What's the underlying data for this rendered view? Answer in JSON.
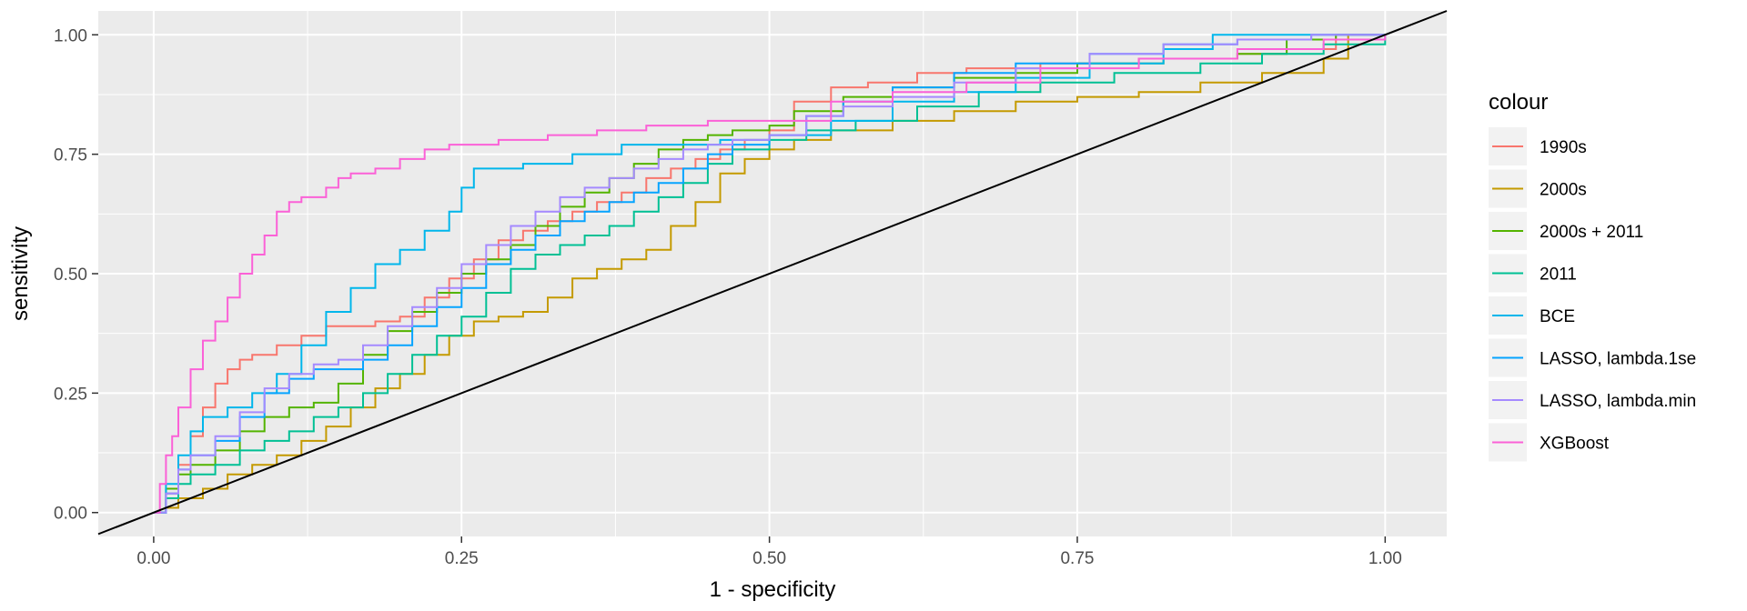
{
  "chart_data": {
    "type": "line",
    "title": "",
    "xlabel": "1 - specificity",
    "ylabel": "sensitivity",
    "xlim": [
      -0.045,
      1.05
    ],
    "ylim": [
      -0.05,
      1.05
    ],
    "x_ticks": [
      0.0,
      0.25,
      0.5,
      0.75,
      1.0
    ],
    "x_tick_labels": [
      "0.00",
      "0.25",
      "0.50",
      "0.75",
      "1.00"
    ],
    "y_ticks": [
      0.0,
      0.25,
      0.5,
      0.75,
      1.0
    ],
    "y_tick_labels": [
      "0.00",
      "0.25",
      "0.50",
      "0.75",
      "1.00"
    ],
    "grid": true,
    "legend": {
      "title": "colour",
      "position": "right"
    },
    "reference_line": {
      "type": "diagonal",
      "color": "#000000"
    },
    "series": [
      {
        "name": "1990s",
        "color": "#F8766D",
        "points": [
          [
            0,
            0
          ],
          [
            0.01,
            0.04
          ],
          [
            0.02,
            0.1
          ],
          [
            0.03,
            0.16
          ],
          [
            0.04,
            0.22
          ],
          [
            0.05,
            0.27
          ],
          [
            0.06,
            0.3
          ],
          [
            0.07,
            0.32
          ],
          [
            0.08,
            0.33
          ],
          [
            0.1,
            0.35
          ],
          [
            0.12,
            0.37
          ],
          [
            0.14,
            0.39
          ],
          [
            0.16,
            0.39
          ],
          [
            0.18,
            0.4
          ],
          [
            0.2,
            0.41
          ],
          [
            0.22,
            0.45
          ],
          [
            0.24,
            0.49
          ],
          [
            0.26,
            0.53
          ],
          [
            0.28,
            0.57
          ],
          [
            0.3,
            0.59
          ],
          [
            0.32,
            0.61
          ],
          [
            0.34,
            0.63
          ],
          [
            0.36,
            0.65
          ],
          [
            0.38,
            0.67
          ],
          [
            0.4,
            0.7
          ],
          [
            0.42,
            0.72
          ],
          [
            0.44,
            0.74
          ],
          [
            0.46,
            0.76
          ],
          [
            0.48,
            0.78
          ],
          [
            0.5,
            0.8
          ],
          [
            0.52,
            0.86
          ],
          [
            0.55,
            0.89
          ],
          [
            0.58,
            0.9
          ],
          [
            0.62,
            0.92
          ],
          [
            0.66,
            0.93
          ],
          [
            0.72,
            0.94
          ],
          [
            0.8,
            0.95
          ],
          [
            0.88,
            0.96
          ],
          [
            0.92,
            0.97
          ],
          [
            0.96,
            1.0
          ],
          [
            1.0,
            1.0
          ]
        ]
      },
      {
        "name": "2000s",
        "color": "#C49A00",
        "points": [
          [
            0,
            0
          ],
          [
            0.01,
            0.01
          ],
          [
            0.02,
            0.03
          ],
          [
            0.04,
            0.05
          ],
          [
            0.06,
            0.08
          ],
          [
            0.08,
            0.1
          ],
          [
            0.1,
            0.12
          ],
          [
            0.12,
            0.15
          ],
          [
            0.14,
            0.18
          ],
          [
            0.16,
            0.22
          ],
          [
            0.18,
            0.26
          ],
          [
            0.2,
            0.29
          ],
          [
            0.22,
            0.33
          ],
          [
            0.24,
            0.37
          ],
          [
            0.26,
            0.4
          ],
          [
            0.28,
            0.41
          ],
          [
            0.3,
            0.42
          ],
          [
            0.32,
            0.45
          ],
          [
            0.34,
            0.49
          ],
          [
            0.36,
            0.51
          ],
          [
            0.38,
            0.53
          ],
          [
            0.4,
            0.55
          ],
          [
            0.42,
            0.6
          ],
          [
            0.44,
            0.65
          ],
          [
            0.46,
            0.71
          ],
          [
            0.48,
            0.74
          ],
          [
            0.5,
            0.76
          ],
          [
            0.52,
            0.78
          ],
          [
            0.55,
            0.8
          ],
          [
            0.6,
            0.82
          ],
          [
            0.65,
            0.84
          ],
          [
            0.7,
            0.86
          ],
          [
            0.75,
            0.87
          ],
          [
            0.8,
            0.88
          ],
          [
            0.85,
            0.9
          ],
          [
            0.9,
            0.92
          ],
          [
            0.95,
            0.95
          ],
          [
            0.97,
            1.0
          ],
          [
            1.0,
            1.0
          ]
        ]
      },
      {
        "name": "2000s + 2011",
        "color": "#53B400",
        "points": [
          [
            0,
            0
          ],
          [
            0.01,
            0.05
          ],
          [
            0.02,
            0.08
          ],
          [
            0.03,
            0.1
          ],
          [
            0.05,
            0.13
          ],
          [
            0.07,
            0.17
          ],
          [
            0.09,
            0.2
          ],
          [
            0.11,
            0.22
          ],
          [
            0.13,
            0.23
          ],
          [
            0.15,
            0.27
          ],
          [
            0.17,
            0.33
          ],
          [
            0.19,
            0.38
          ],
          [
            0.21,
            0.42
          ],
          [
            0.23,
            0.46
          ],
          [
            0.25,
            0.5
          ],
          [
            0.27,
            0.53
          ],
          [
            0.29,
            0.56
          ],
          [
            0.31,
            0.6
          ],
          [
            0.33,
            0.64
          ],
          [
            0.35,
            0.67
          ],
          [
            0.37,
            0.7
          ],
          [
            0.39,
            0.73
          ],
          [
            0.41,
            0.76
          ],
          [
            0.43,
            0.78
          ],
          [
            0.45,
            0.79
          ],
          [
            0.47,
            0.8
          ],
          [
            0.5,
            0.81
          ],
          [
            0.52,
            0.84
          ],
          [
            0.56,
            0.87
          ],
          [
            0.6,
            0.89
          ],
          [
            0.65,
            0.91
          ],
          [
            0.7,
            0.92
          ],
          [
            0.75,
            0.94
          ],
          [
            0.82,
            0.95
          ],
          [
            0.88,
            0.96
          ],
          [
            0.92,
            0.99
          ],
          [
            0.96,
            1.0
          ],
          [
            1.0,
            1.0
          ]
        ]
      },
      {
        "name": "2011",
        "color": "#00C094",
        "points": [
          [
            0,
            0
          ],
          [
            0.01,
            0.03
          ],
          [
            0.02,
            0.06
          ],
          [
            0.03,
            0.08
          ],
          [
            0.05,
            0.1
          ],
          [
            0.07,
            0.13
          ],
          [
            0.09,
            0.15
          ],
          [
            0.11,
            0.17
          ],
          [
            0.13,
            0.2
          ],
          [
            0.15,
            0.22
          ],
          [
            0.17,
            0.25
          ],
          [
            0.19,
            0.29
          ],
          [
            0.21,
            0.33
          ],
          [
            0.23,
            0.37
          ],
          [
            0.25,
            0.41
          ],
          [
            0.27,
            0.46
          ],
          [
            0.29,
            0.51
          ],
          [
            0.31,
            0.54
          ],
          [
            0.33,
            0.56
          ],
          [
            0.35,
            0.58
          ],
          [
            0.37,
            0.6
          ],
          [
            0.39,
            0.63
          ],
          [
            0.41,
            0.66
          ],
          [
            0.43,
            0.69
          ],
          [
            0.45,
            0.73
          ],
          [
            0.47,
            0.76
          ],
          [
            0.5,
            0.78
          ],
          [
            0.53,
            0.8
          ],
          [
            0.57,
            0.82
          ],
          [
            0.62,
            0.85
          ],
          [
            0.67,
            0.88
          ],
          [
            0.72,
            0.9
          ],
          [
            0.78,
            0.92
          ],
          [
            0.85,
            0.94
          ],
          [
            0.9,
            0.96
          ],
          [
            0.95,
            0.98
          ],
          [
            1.0,
            1.0
          ]
        ]
      },
      {
        "name": "BCE",
        "color": "#00B6EB",
        "points": [
          [
            0,
            0
          ],
          [
            0.01,
            0.06
          ],
          [
            0.02,
            0.12
          ],
          [
            0.03,
            0.17
          ],
          [
            0.04,
            0.2
          ],
          [
            0.06,
            0.22
          ],
          [
            0.08,
            0.25
          ],
          [
            0.1,
            0.29
          ],
          [
            0.12,
            0.35
          ],
          [
            0.14,
            0.42
          ],
          [
            0.16,
            0.47
          ],
          [
            0.18,
            0.52
          ],
          [
            0.2,
            0.55
          ],
          [
            0.22,
            0.59
          ],
          [
            0.24,
            0.63
          ],
          [
            0.25,
            0.68
          ],
          [
            0.26,
            0.72
          ],
          [
            0.3,
            0.73
          ],
          [
            0.34,
            0.75
          ],
          [
            0.38,
            0.77
          ],
          [
            0.42,
            0.77
          ],
          [
            0.46,
            0.78
          ],
          [
            0.5,
            0.79
          ],
          [
            0.55,
            0.82
          ],
          [
            0.6,
            0.86
          ],
          [
            0.65,
            0.88
          ],
          [
            0.7,
            0.91
          ],
          [
            0.76,
            0.94
          ],
          [
            0.82,
            0.97
          ],
          [
            0.86,
            1.0
          ],
          [
            1.0,
            1.0
          ]
        ]
      },
      {
        "name": "LASSO, lambda.1se",
        "color": "#06A4FF",
        "points": [
          [
            0,
            0
          ],
          [
            0.01,
            0.04
          ],
          [
            0.02,
            0.09
          ],
          [
            0.03,
            0.12
          ],
          [
            0.05,
            0.15
          ],
          [
            0.07,
            0.2
          ],
          [
            0.09,
            0.25
          ],
          [
            0.11,
            0.28
          ],
          [
            0.13,
            0.3
          ],
          [
            0.15,
            0.3
          ],
          [
            0.17,
            0.32
          ],
          [
            0.19,
            0.35
          ],
          [
            0.21,
            0.39
          ],
          [
            0.23,
            0.43
          ],
          [
            0.25,
            0.47
          ],
          [
            0.27,
            0.52
          ],
          [
            0.29,
            0.55
          ],
          [
            0.31,
            0.58
          ],
          [
            0.33,
            0.61
          ],
          [
            0.35,
            0.63
          ],
          [
            0.37,
            0.65
          ],
          [
            0.39,
            0.67
          ],
          [
            0.41,
            0.69
          ],
          [
            0.43,
            0.72
          ],
          [
            0.45,
            0.75
          ],
          [
            0.47,
            0.77
          ],
          [
            0.5,
            0.79
          ],
          [
            0.53,
            0.83
          ],
          [
            0.56,
            0.86
          ],
          [
            0.6,
            0.89
          ],
          [
            0.65,
            0.92
          ],
          [
            0.7,
            0.94
          ],
          [
            0.76,
            0.96
          ],
          [
            0.82,
            0.98
          ],
          [
            0.88,
            0.99
          ],
          [
            0.94,
            1.0
          ],
          [
            1.0,
            1.0
          ]
        ]
      },
      {
        "name": "LASSO, lambda.min",
        "color": "#A58AFF",
        "points": [
          [
            0,
            0
          ],
          [
            0.01,
            0.04
          ],
          [
            0.02,
            0.09
          ],
          [
            0.03,
            0.12
          ],
          [
            0.05,
            0.16
          ],
          [
            0.07,
            0.21
          ],
          [
            0.09,
            0.26
          ],
          [
            0.11,
            0.29
          ],
          [
            0.13,
            0.31
          ],
          [
            0.15,
            0.32
          ],
          [
            0.17,
            0.35
          ],
          [
            0.19,
            0.39
          ],
          [
            0.21,
            0.43
          ],
          [
            0.23,
            0.47
          ],
          [
            0.25,
            0.52
          ],
          [
            0.27,
            0.56
          ],
          [
            0.29,
            0.6
          ],
          [
            0.31,
            0.63
          ],
          [
            0.33,
            0.66
          ],
          [
            0.35,
            0.68
          ],
          [
            0.37,
            0.7
          ],
          [
            0.39,
            0.72
          ],
          [
            0.41,
            0.74
          ],
          [
            0.43,
            0.76
          ],
          [
            0.45,
            0.77
          ],
          [
            0.47,
            0.78
          ],
          [
            0.5,
            0.79
          ],
          [
            0.53,
            0.83
          ],
          [
            0.56,
            0.85
          ],
          [
            0.6,
            0.87
          ],
          [
            0.65,
            0.9
          ],
          [
            0.7,
            0.93
          ],
          [
            0.76,
            0.96
          ],
          [
            0.82,
            0.98
          ],
          [
            0.88,
            0.99
          ],
          [
            0.94,
            1.0
          ],
          [
            1.0,
            1.0
          ]
        ]
      },
      {
        "name": "XGBoost",
        "color": "#FB61D7",
        "points": [
          [
            0,
            0
          ],
          [
            0.005,
            0.06
          ],
          [
            0.01,
            0.12
          ],
          [
            0.015,
            0.16
          ],
          [
            0.02,
            0.22
          ],
          [
            0.03,
            0.3
          ],
          [
            0.04,
            0.36
          ],
          [
            0.05,
            0.4
          ],
          [
            0.06,
            0.45
          ],
          [
            0.07,
            0.5
          ],
          [
            0.08,
            0.54
          ],
          [
            0.09,
            0.58
          ],
          [
            0.1,
            0.63
          ],
          [
            0.11,
            0.65
          ],
          [
            0.12,
            0.66
          ],
          [
            0.13,
            0.66
          ],
          [
            0.14,
            0.68
          ],
          [
            0.15,
            0.7
          ],
          [
            0.16,
            0.71
          ],
          [
            0.18,
            0.72
          ],
          [
            0.2,
            0.74
          ],
          [
            0.22,
            0.76
          ],
          [
            0.24,
            0.77
          ],
          [
            0.28,
            0.78
          ],
          [
            0.32,
            0.79
          ],
          [
            0.36,
            0.8
          ],
          [
            0.4,
            0.81
          ],
          [
            0.45,
            0.82
          ],
          [
            0.5,
            0.82
          ],
          [
            0.55,
            0.86
          ],
          [
            0.6,
            0.88
          ],
          [
            0.66,
            0.9
          ],
          [
            0.72,
            0.93
          ],
          [
            0.8,
            0.95
          ],
          [
            0.88,
            0.97
          ],
          [
            0.95,
            0.99
          ],
          [
            1.0,
            1.0
          ]
        ]
      }
    ]
  }
}
